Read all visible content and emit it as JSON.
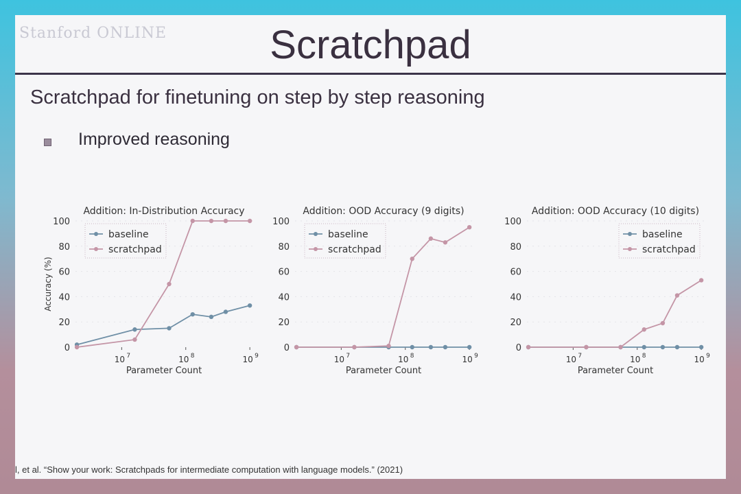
{
  "slide": {
    "logo_text": "Stanford ONLINE",
    "title": "Scratchpad",
    "subtitle": "Scratchpad for finetuning on step by step reasoning",
    "bullets": [
      "Improved reasoning"
    ],
    "footnote": "l, et al. “Show your work: Scratchpads for intermediate computation with language models.” (2021)"
  },
  "colors": {
    "baseline": "#6f8fa6",
    "scratchpad": "#c495a6"
  },
  "chart_data": [
    {
      "type": "line",
      "title": "Addition: In-Distribution Accuracy",
      "xlabel": "Parameter Count",
      "ylabel": "Accuracy (%)",
      "x_scale": "log",
      "xlim": [
        1900000,
        1100000000
      ],
      "ylim": [
        0,
        100
      ],
      "yticks": [
        0,
        20,
        40,
        60,
        80,
        100
      ],
      "xticks": [
        {
          "value": 10000000,
          "base": "10",
          "exp": "7"
        },
        {
          "value": 100000000,
          "base": "10",
          "exp": "8"
        },
        {
          "value": 1000000000,
          "base": "10",
          "exp": "9"
        }
      ],
      "legend_position": "top-left",
      "grid": true,
      "series": [
        {
          "name": "baseline",
          "x": [
            2000000,
            16000000,
            55000000,
            128000000,
            250000000,
            420000000,
            1000000000
          ],
          "values": [
            2,
            14,
            15,
            26,
            24,
            28,
            33
          ]
        },
        {
          "name": "scratchpad",
          "x": [
            2000000,
            16000000,
            55000000,
            128000000,
            250000000,
            420000000,
            1000000000
          ],
          "values": [
            0,
            6,
            50,
            100,
            100,
            100,
            100
          ]
        }
      ]
    },
    {
      "type": "line",
      "title": "Addition: OOD Accuracy (9 digits)",
      "xlabel": "Parameter Count",
      "ylabel": "",
      "x_scale": "log",
      "xlim": [
        1900000,
        1100000000
      ],
      "ylim": [
        0,
        100
      ],
      "yticks": [
        0,
        20,
        40,
        60,
        80,
        100
      ],
      "xticks": [
        {
          "value": 10000000,
          "base": "10",
          "exp": "7"
        },
        {
          "value": 100000000,
          "base": "10",
          "exp": "8"
        },
        {
          "value": 1000000000,
          "base": "10",
          "exp": "9"
        }
      ],
      "legend_position": "top-left",
      "grid": true,
      "series": [
        {
          "name": "baseline",
          "x": [
            2000000,
            16000000,
            55000000,
            128000000,
            250000000,
            420000000,
            1000000000
          ],
          "values": [
            0,
            0,
            0,
            0,
            0,
            0,
            0
          ]
        },
        {
          "name": "scratchpad",
          "x": [
            2000000,
            16000000,
            55000000,
            128000000,
            250000000,
            420000000,
            1000000000
          ],
          "values": [
            0,
            0,
            1,
            70,
            86,
            83,
            95
          ]
        }
      ]
    },
    {
      "type": "line",
      "title": "Addition: OOD Accuracy (10 digits)",
      "xlabel": "Parameter Count",
      "ylabel": "",
      "x_scale": "log",
      "xlim": [
        1900000,
        1100000000
      ],
      "ylim": [
        0,
        100
      ],
      "yticks": [
        0,
        20,
        40,
        60,
        80,
        100
      ],
      "xticks": [
        {
          "value": 10000000,
          "base": "10",
          "exp": "7"
        },
        {
          "value": 100000000,
          "base": "10",
          "exp": "8"
        },
        {
          "value": 1000000000,
          "base": "10",
          "exp": "9"
        }
      ],
      "legend_position": "top-right",
      "grid": true,
      "series": [
        {
          "name": "baseline",
          "x": [
            2000000,
            16000000,
            55000000,
            128000000,
            250000000,
            420000000,
            1000000000
          ],
          "values": [
            0,
            0,
            0,
            0,
            0,
            0,
            0
          ]
        },
        {
          "name": "scratchpad",
          "x": [
            2000000,
            16000000,
            55000000,
            128000000,
            250000000,
            420000000,
            1000000000
          ],
          "values": [
            0,
            0,
            0,
            14,
            19,
            41,
            53
          ]
        }
      ]
    }
  ]
}
